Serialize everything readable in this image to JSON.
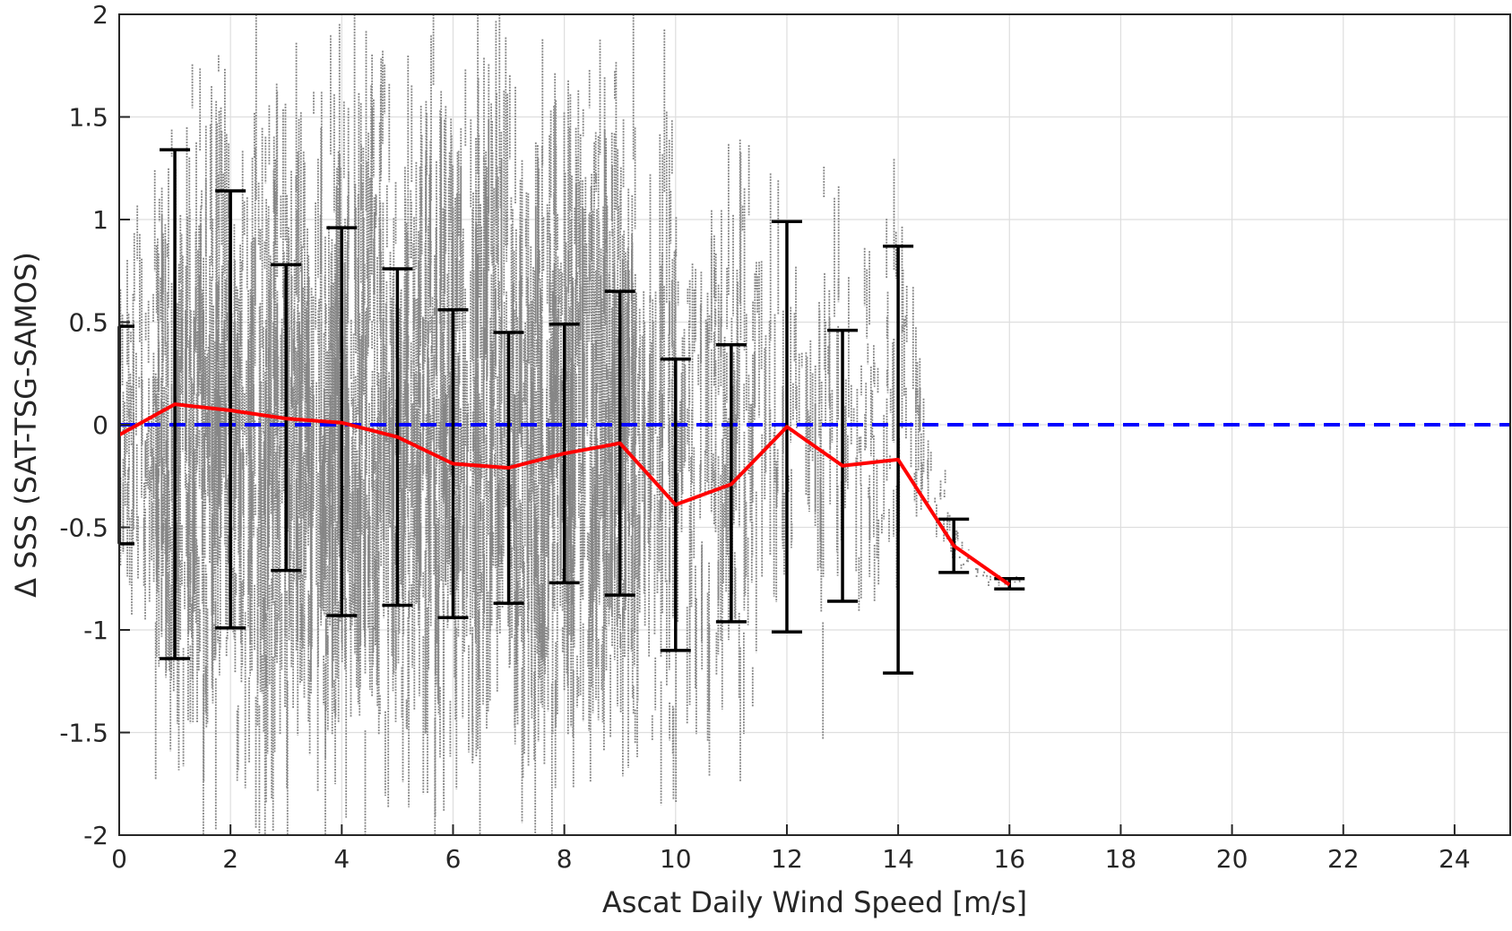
{
  "chart_data": {
    "type": "scatter",
    "title": "",
    "xlabel": "Ascat Daily Wind Speed [m/s]",
    "ylabel": "Δ SSS (SAT-TSG-SAMOS)",
    "xlim": [
      0,
      25
    ],
    "ylim": [
      -2,
      2
    ],
    "grid": true,
    "x_ticks": [
      0,
      2,
      4,
      6,
      8,
      10,
      12,
      14,
      16,
      18,
      20,
      22,
      24
    ],
    "y_ticks": [
      2,
      1.5,
      1,
      0.5,
      0,
      -0.5,
      -1,
      -1.5,
      -2
    ],
    "x_tick_labels": [
      "0",
      "2",
      "4",
      "6",
      "8",
      "10",
      "12",
      "14",
      "16",
      "18",
      "20",
      "22",
      "24"
    ],
    "y_tick_labels": [
      "2",
      "1.5",
      "1",
      "0.5",
      "0",
      "-0.5",
      "-1",
      "-1.5",
      "-2"
    ],
    "scatter_color": "#808080",
    "mean_line_color": "#ff0000",
    "errorbar_color": "#000000",
    "zero_line_color": "#0000ff",
    "scatter_envelope": {
      "x": [
        0,
        0.5,
        1,
        1.5,
        2,
        2.5,
        3,
        3.5,
        4,
        4.5,
        5,
        5.5,
        6,
        6.5,
        7,
        7.5,
        8,
        8.5,
        9,
        9.5,
        10,
        10.5,
        11,
        11.5,
        12,
        12.5,
        13,
        13.5,
        14,
        14.5,
        15,
        15.5,
        16
      ],
      "y_min": [
        -0.8,
        -1.3,
        -2.0,
        -2.0,
        -2.0,
        -2.0,
        -2.0,
        -2.0,
        -2.0,
        -2.0,
        -2.0,
        -2.0,
        -2.0,
        -2.0,
        -2.0,
        -2.0,
        -2.0,
        -1.9,
        -1.9,
        -1.8,
        -1.8,
        -1.6,
        -1.9,
        -1.6,
        -1.5,
        -1.4,
        -1.1,
        -1.1,
        -0.9,
        -0.8,
        -0.75,
        -0.8,
        -0.82
      ],
      "y_max": [
        0.8,
        1.3,
        1.6,
        2.0,
        2.0,
        2.0,
        2.0,
        2.0,
        2.0,
        2.0,
        2.0,
        2.0,
        2.0,
        2.0,
        2.0,
        2.0,
        2.0,
        2.0,
        1.9,
        1.6,
        1.9,
        1.4,
        1.5,
        1.8,
        1.3,
        1.4,
        1.2,
        0.9,
        1.55,
        0.55,
        -0.45,
        -0.7,
        -0.7
      ]
    },
    "series": [
      {
        "x": [
          0,
          1,
          2,
          3,
          4,
          5,
          6,
          7,
          8,
          9,
          10,
          11,
          12,
          13,
          14,
          15,
          16
        ],
        "mean": [
          -0.05,
          0.1,
          0.07,
          0.03,
          0.01,
          -0.06,
          -0.19,
          -0.21,
          -0.14,
          -0.09,
          -0.39,
          -0.29,
          -0.01,
          -0.2,
          -0.17,
          -0.59,
          -0.78
        ],
        "upper": [
          0.48,
          1.34,
          1.14,
          0.78,
          0.96,
          0.76,
          0.56,
          0.45,
          0.49,
          0.65,
          0.32,
          0.39,
          0.99,
          0.46,
          0.87,
          -0.46,
          -0.75
        ],
        "lower": [
          -0.58,
          -1.14,
          -0.99,
          -0.71,
          -0.93,
          -0.88,
          -0.94,
          -0.87,
          -0.77,
          -0.83,
          -1.1,
          -0.96,
          -1.01,
          -0.86,
          -1.21,
          -0.72,
          -0.8
        ]
      }
    ],
    "reference_line": {
      "y": 0,
      "style": "dashed"
    }
  }
}
